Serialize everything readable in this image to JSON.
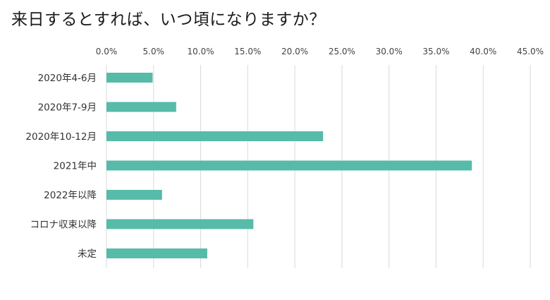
{
  "chart_data": {
    "type": "bar",
    "orientation": "horizontal",
    "title": "来日するとすれば、いつ頃になりますか？",
    "categories": [
      "2020年4-6月",
      "2020年7-9月",
      "2020年10-12月",
      "2021年中",
      "2022年以降",
      "コロナ収束以降",
      "未定"
    ],
    "values": [
      4.9,
      7.4,
      23.0,
      38.8,
      5.9,
      15.6,
      10.7
    ],
    "xlim": [
      0,
      45
    ],
    "x_ticks": [
      "0.0%",
      "5.0%",
      "10.0%",
      "15.0%",
      "20.0%",
      "25.0%",
      "30.0%",
      "35.0%",
      "40.0%",
      "45.0%"
    ],
    "x_axis_position": "top",
    "grid": true,
    "legend": "none",
    "bar_color": "#56bba9",
    "grid_color": "#d9d9d9"
  }
}
